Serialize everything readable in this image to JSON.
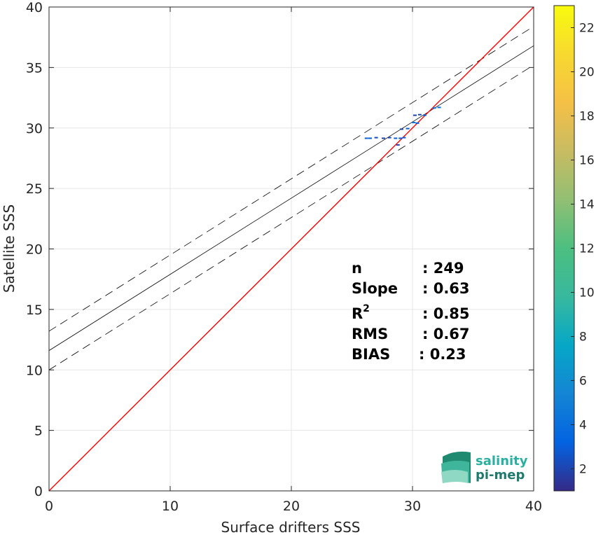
{
  "chart_data": {
    "type": "scatter",
    "xlabel": "Surface drifters SSS",
    "ylabel": "Satellite SSS",
    "xlim": [
      0,
      40
    ],
    "ylim": [
      0,
      40
    ],
    "xticks": [
      "0",
      "10",
      "20",
      "30",
      "40"
    ],
    "yticks": [
      "0",
      "5",
      "10",
      "15",
      "20",
      "25",
      "30",
      "35",
      "40"
    ],
    "grid": true,
    "colorbar": {
      "range": [
        1,
        23
      ],
      "ticks": [
        "2",
        "4",
        "6",
        "8",
        "10",
        "12",
        "14",
        "16",
        "18",
        "20",
        "22"
      ],
      "colormap": "parula"
    },
    "points": [
      {
        "x": 26.2,
        "y": 29.15,
        "c": 3
      },
      {
        "x": 26.5,
        "y": 29.15,
        "c": 3
      },
      {
        "x": 27.0,
        "y": 29.2,
        "c": 2
      },
      {
        "x": 27.6,
        "y": 29.15,
        "c": 2
      },
      {
        "x": 28.1,
        "y": 29.2,
        "c": 2
      },
      {
        "x": 28.6,
        "y": 29.15,
        "c": 3
      },
      {
        "x": 29.0,
        "y": 29.15,
        "c": 3
      },
      {
        "x": 29.3,
        "y": 29.2,
        "c": 3
      },
      {
        "x": 29.1,
        "y": 29.9,
        "c": 2
      },
      {
        "x": 29.6,
        "y": 29.95,
        "c": 3
      },
      {
        "x": 30.1,
        "y": 30.45,
        "c": 4
      },
      {
        "x": 30.4,
        "y": 30.4,
        "c": 3
      },
      {
        "x": 30.2,
        "y": 31.05,
        "c": 2
      },
      {
        "x": 30.6,
        "y": 31.1,
        "c": 2
      },
      {
        "x": 31.0,
        "y": 31.05,
        "c": 3
      },
      {
        "x": 31.8,
        "y": 31.65,
        "c": 4
      },
      {
        "x": 32.2,
        "y": 31.7,
        "c": 4
      },
      {
        "x": 28.8,
        "y": 28.6,
        "c": 2
      }
    ],
    "identity_line": {
      "color": "#ff0000"
    },
    "regression": {
      "intercept": 11.6,
      "slope": 0.63,
      "ci_offset": 1.6
    },
    "stats": [
      {
        "label": "n",
        "value": ": 249"
      },
      {
        "label": "Slope",
        "value": ": 0.63"
      },
      {
        "label": "R",
        "sup": "2",
        "value": ": 0.85"
      },
      {
        "label": "RMS",
        "value": ": 0.67"
      },
      {
        "label": "BIAS",
        "value": ": 0.23"
      }
    ]
  },
  "logo": {
    "line1": "salinity",
    "line2": "pi-mep",
    "color": "#2a9d8f"
  }
}
